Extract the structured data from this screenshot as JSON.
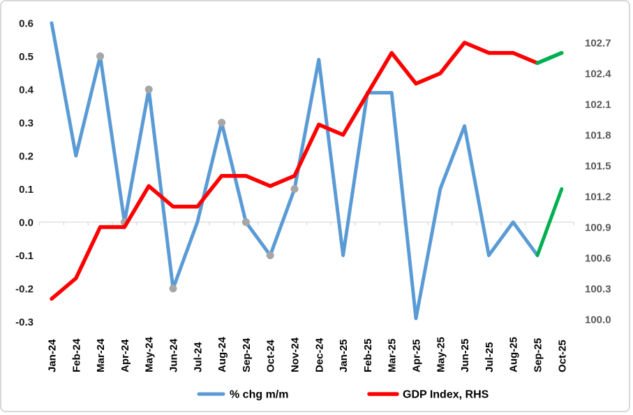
{
  "chart_data": {
    "type": "line",
    "x": [
      "Jan-24",
      "Feb-24",
      "Mar-24",
      "Apr-24",
      "May-24",
      "Jun-24",
      "Jul-24",
      "Aug-24",
      "Sep-24",
      "Oct-24",
      "Nov-24",
      "Dec-24",
      "Jan-25",
      "Feb-25",
      "Mar-25",
      "Apr-25",
      "May-25",
      "Jun-25",
      "Jul-25",
      "Aug-25",
      "Sep-25",
      "Oct-25"
    ],
    "series": [
      {
        "name": "% chg m/m",
        "axis": "left",
        "color": "#5B9BD5",
        "forecast_color": "#00B050",
        "forecast_from_index": 20,
        "stroke_width": 5,
        "values": [
          0.6,
          0.2,
          0.5,
          0.0,
          0.4,
          -0.2,
          0.0,
          0.3,
          0.0,
          -0.1,
          0.1,
          0.49,
          -0.1,
          0.39,
          0.39,
          -0.29,
          0.1,
          0.29,
          -0.1,
          0.0,
          -0.1,
          0.1
        ],
        "marker_indices": [
          2,
          3,
          4,
          5,
          7,
          8,
          9,
          10
        ],
        "marker_color": "#A6A6A6",
        "marker_radius": 5.5
      },
      {
        "name": "GDP Index, RHS",
        "axis": "right",
        "color": "#FF0000",
        "forecast_color": "#00B050",
        "forecast_from_index": 20,
        "stroke_width": 5.5,
        "values": [
          100.2,
          100.4,
          100.9,
          100.9,
          101.3,
          101.1,
          101.1,
          101.4,
          101.4,
          101.3,
          101.4,
          101.9,
          101.8,
          102.2,
          102.6,
          102.3,
          102.4,
          102.7,
          102.6,
          102.6,
          102.5,
          102.6
        ]
      }
    ],
    "left_axis": {
      "min": -0.3,
      "max": 0.6,
      "tick_step": 0.1,
      "tick_labels": [
        "0.6",
        "0.5",
        "0.4",
        "0.3",
        "0.2",
        "0.1",
        "0.0",
        "-0.1",
        "-0.2",
        "-0.3"
      ]
    },
    "right_axis": {
      "min": 100.0,
      "max": 102.7,
      "tick_step": 0.3,
      "tick_labels": [
        "102.7",
        "102.4",
        "102.1",
        "101.8",
        "101.5",
        "101.2",
        "100.9",
        "100.6",
        "100.3",
        "100.0"
      ]
    },
    "grid": "zero-line-only",
    "zero_line_color": "#D9D9D9",
    "legend": [
      {
        "label": "% chg m/m",
        "color": "#5B9BD5"
      },
      {
        "label": "GDP Index, RHS",
        "color": "#FF0000"
      }
    ],
    "legend_position": "bottom"
  }
}
